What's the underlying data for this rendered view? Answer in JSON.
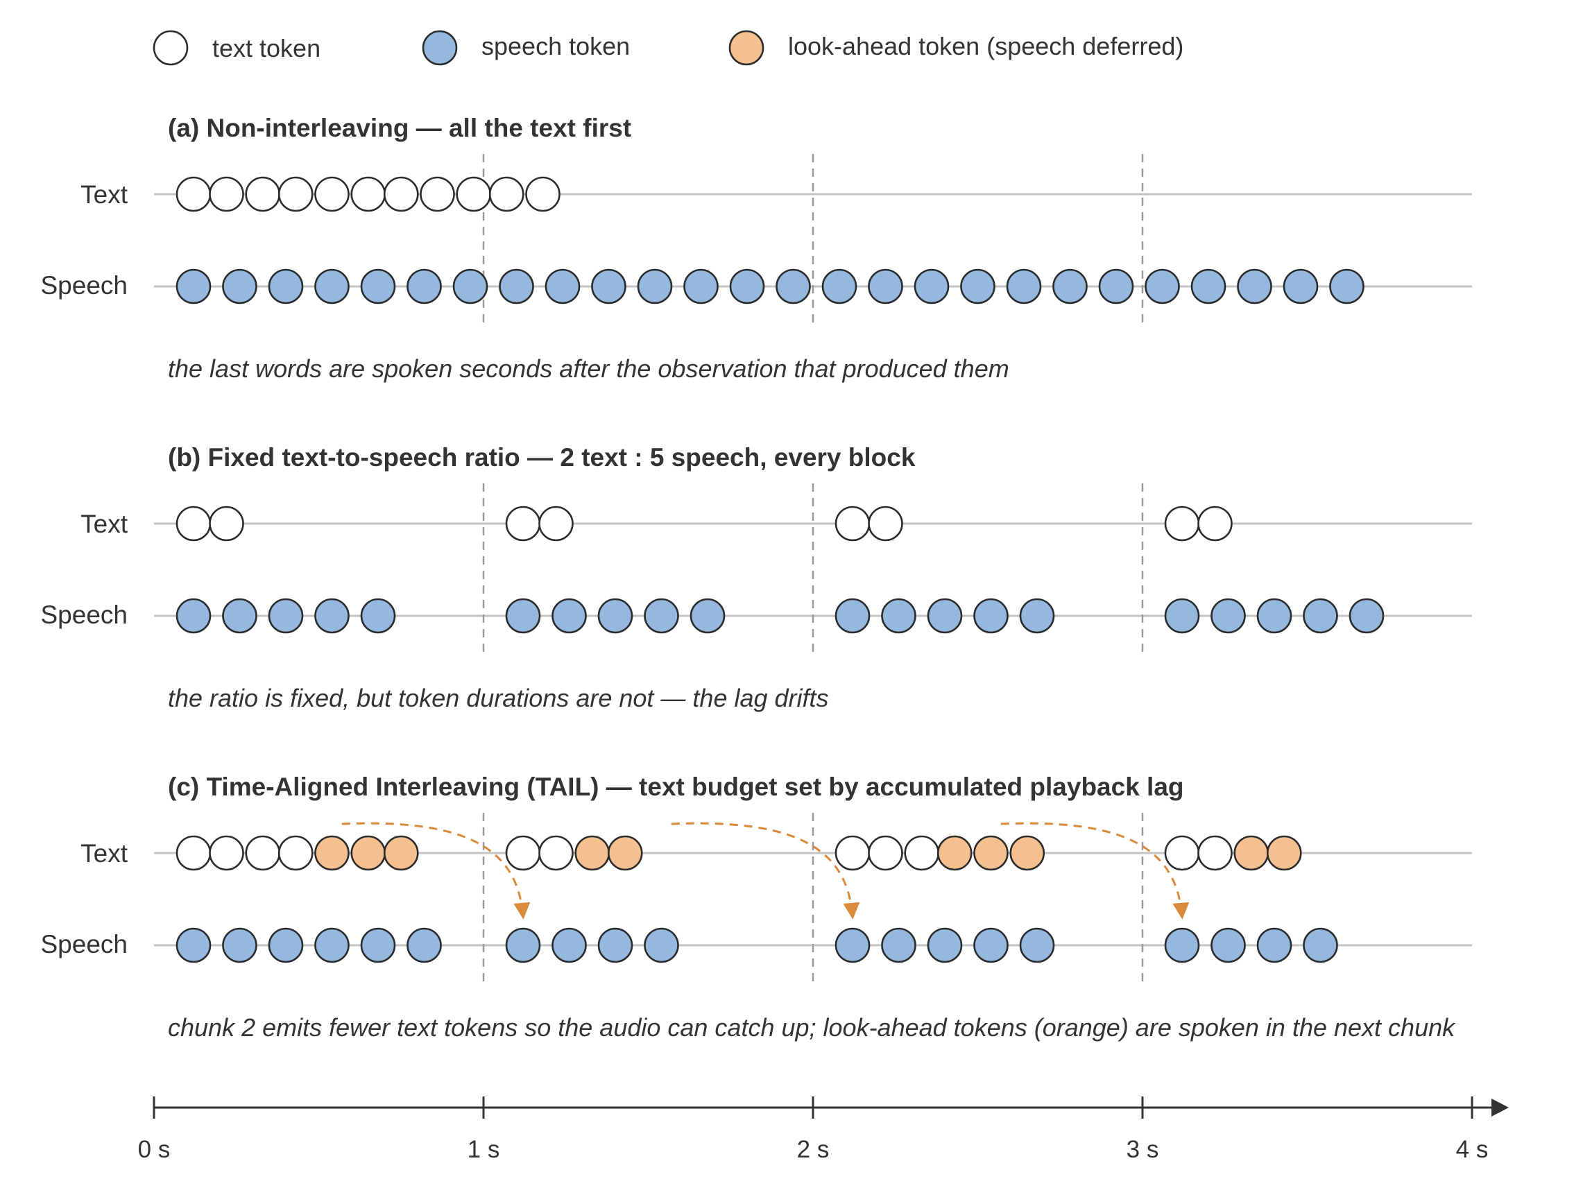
{
  "colors": {
    "text_token": "#ffffff",
    "speech_token": "#95b8df",
    "lookahead_token": "#f4c08f",
    "arrow": "#d98a3a",
    "ink": "#333333"
  },
  "legend": [
    {
      "kind": "text",
      "label": "text token"
    },
    {
      "kind": "speech",
      "label": "speech token"
    },
    {
      "kind": "lookahead",
      "label": "look-ahead token (speech deferred)"
    }
  ],
  "row_labels": {
    "text": "Text",
    "speech": "Speech"
  },
  "panels": [
    {
      "title": "(a) Non-interleaving — all the text first",
      "caption": "the last words are spoken seconds after the observation that produced them",
      "text_tokens": [
        {
          "t": 0.12,
          "kind": "text"
        },
        {
          "t": 0.22,
          "kind": "text"
        },
        {
          "t": 0.33,
          "kind": "text"
        },
        {
          "t": 0.43,
          "kind": "text"
        },
        {
          "t": 0.54,
          "kind": "text"
        },
        {
          "t": 0.65,
          "kind": "text"
        },
        {
          "t": 0.75,
          "kind": "text"
        },
        {
          "t": 0.86,
          "kind": "text"
        },
        {
          "t": 0.97,
          "kind": "text"
        },
        {
          "t": 1.07,
          "kind": "text"
        },
        {
          "t": 1.18,
          "kind": "text"
        }
      ],
      "speech_tokens": [
        0.12,
        0.26,
        0.4,
        0.54,
        0.68,
        0.82,
        0.96,
        1.1,
        1.24,
        1.38,
        1.52,
        1.66,
        1.8,
        1.94,
        2.08,
        2.22,
        2.36,
        2.5,
        2.64,
        2.78,
        2.92,
        3.06,
        3.2,
        3.34,
        3.48,
        3.62
      ],
      "arrows": []
    },
    {
      "title": "(b) Fixed text-to-speech ratio — 2 text : 5 speech, every block",
      "caption": "the ratio is fixed, but token durations are not — the lag drifts",
      "text_tokens": [
        {
          "t": 0.12,
          "kind": "text"
        },
        {
          "t": 0.22,
          "kind": "text"
        },
        {
          "t": 1.12,
          "kind": "text"
        },
        {
          "t": 1.22,
          "kind": "text"
        },
        {
          "t": 2.12,
          "kind": "text"
        },
        {
          "t": 2.22,
          "kind": "text"
        },
        {
          "t": 3.12,
          "kind": "text"
        },
        {
          "t": 3.22,
          "kind": "text"
        }
      ],
      "speech_tokens": [
        0.12,
        0.26,
        0.4,
        0.54,
        0.68,
        1.12,
        1.26,
        1.4,
        1.54,
        1.68,
        2.12,
        2.26,
        2.4,
        2.54,
        2.68,
        3.12,
        3.26,
        3.4,
        3.54,
        3.68
      ],
      "arrows": []
    },
    {
      "title": "(c) Time-Aligned Interleaving (TAIL) — text budget set by accumulated playback lag",
      "caption": "chunk 2 emits fewer text tokens so the audio can catch up; look-ahead tokens (orange) are spoken in the next chunk",
      "text_tokens": [
        {
          "t": 0.12,
          "kind": "text"
        },
        {
          "t": 0.22,
          "kind": "text"
        },
        {
          "t": 0.33,
          "kind": "text"
        },
        {
          "t": 0.43,
          "kind": "text"
        },
        {
          "t": 0.54,
          "kind": "lookahead"
        },
        {
          "t": 0.65,
          "kind": "lookahead"
        },
        {
          "t": 0.75,
          "kind": "lookahead"
        },
        {
          "t": 1.12,
          "kind": "text"
        },
        {
          "t": 1.22,
          "kind": "text"
        },
        {
          "t": 1.33,
          "kind": "lookahead"
        },
        {
          "t": 1.43,
          "kind": "lookahead"
        },
        {
          "t": 2.12,
          "kind": "text"
        },
        {
          "t": 2.22,
          "kind": "text"
        },
        {
          "t": 2.33,
          "kind": "text"
        },
        {
          "t": 2.43,
          "kind": "lookahead"
        },
        {
          "t": 2.54,
          "kind": "lookahead"
        },
        {
          "t": 2.65,
          "kind": "lookahead"
        },
        {
          "t": 3.12,
          "kind": "text"
        },
        {
          "t": 3.22,
          "kind": "text"
        },
        {
          "t": 3.33,
          "kind": "lookahead"
        },
        {
          "t": 3.43,
          "kind": "lookahead"
        }
      ],
      "speech_tokens": [
        0.12,
        0.26,
        0.4,
        0.54,
        0.68,
        0.82,
        1.12,
        1.26,
        1.4,
        1.54,
        2.12,
        2.26,
        2.4,
        2.54,
        2.68,
        3.12,
        3.26,
        3.4,
        3.54
      ],
      "arrows": [
        {
          "from": 0.57,
          "to": 1.12
        },
        {
          "from": 1.57,
          "to": 2.12
        },
        {
          "from": 2.57,
          "to": 3.12
        }
      ]
    }
  ],
  "dividers": [
    1,
    2,
    3
  ],
  "axis": {
    "ticks": [
      0,
      1,
      2,
      3,
      4
    ],
    "tick_labels": [
      "0 s",
      "1 s",
      "2 s",
      "3 s",
      "4 s"
    ]
  }
}
